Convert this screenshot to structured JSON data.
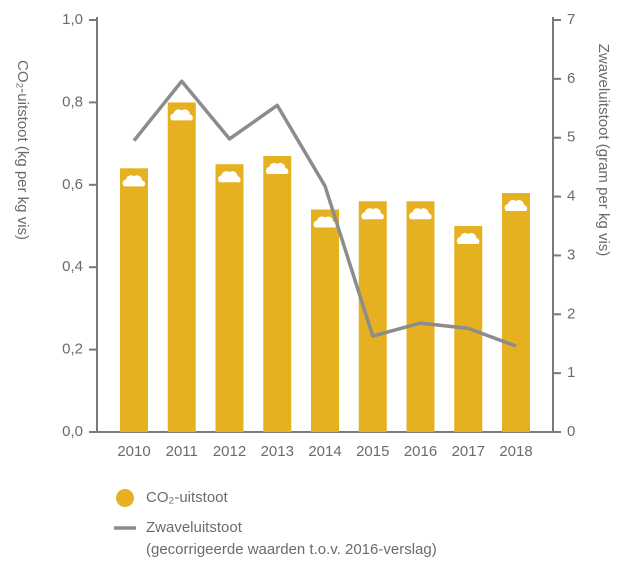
{
  "chart_data": {
    "type": "bar_line",
    "categories": [
      "2010",
      "2011",
      "2012",
      "2013",
      "2014",
      "2015",
      "2016",
      "2017",
      "2018"
    ],
    "ylabel": "CO₂-uitstoot (kg per kg vis)",
    "y2label": "Zwaveluitstoot (gram per kg vis)",
    "ylim": [
      0,
      1
    ],
    "yticks": [
      {
        "value": 0,
        "label": "0,0"
      },
      {
        "value": 0.2,
        "label": "0,2"
      },
      {
        "value": 0.4,
        "label": "0,4"
      },
      {
        "value": 0.6,
        "label": "0,6"
      },
      {
        "value": 0.8,
        "label": "0,8"
      },
      {
        "value": 1,
        "label": "1,0"
      }
    ],
    "y2lim": [
      0,
      7
    ],
    "y2ticks": [
      0,
      1,
      2,
      3,
      4,
      5,
      6,
      7
    ],
    "series": [
      {
        "name": "CO₂-uitstoot",
        "type": "bar",
        "color": "#e6b120",
        "values": [
          0.64,
          0.8,
          0.65,
          0.67,
          0.54,
          0.56,
          0.56,
          0.5,
          0.58
        ]
      },
      {
        "name": "Zwaveluitstoot",
        "type": "line",
        "axis": "y2",
        "color": "#8c8c8c",
        "values": [
          4.95,
          5.96,
          4.98,
          5.55,
          4.18,
          1.63,
          1.85,
          1.76,
          1.46
        ]
      }
    ],
    "legend_note": "(gecorrigeerde waarden t.o.v. 2016-verslag)"
  }
}
